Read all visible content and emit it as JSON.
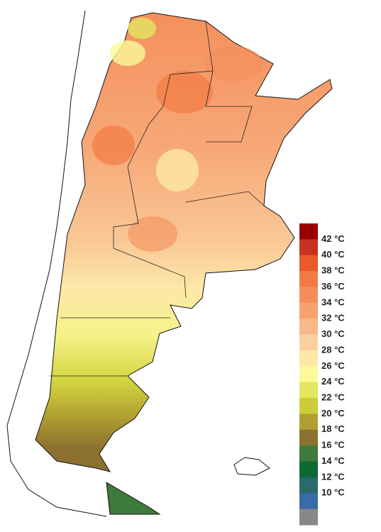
{
  "legend": {
    "labels": [
      "42 °C",
      "40 °C",
      "38 °C",
      "36 °C",
      "34 °C",
      "32 °C",
      "30 °C",
      "28 °C",
      "26 °C",
      "24 °C",
      "22 °C",
      "20 °C",
      "18 °C",
      "16 °C",
      "14 °C",
      "12 °C",
      "10 °C"
    ],
    "colors": [
      "#990000",
      "#c83220",
      "#ea5a2a",
      "#f27a45",
      "#f48f5c",
      "#f6a270",
      "#f8b888",
      "#fbd0a0",
      "#fde8a8",
      "#fafa98",
      "#e2e660",
      "#cccc38",
      "#b0a030",
      "#8c7030",
      "#3e7a3a",
      "#0a6a32",
      "#2a6a6a",
      "#3a6aa8",
      "#888888"
    ]
  }
}
